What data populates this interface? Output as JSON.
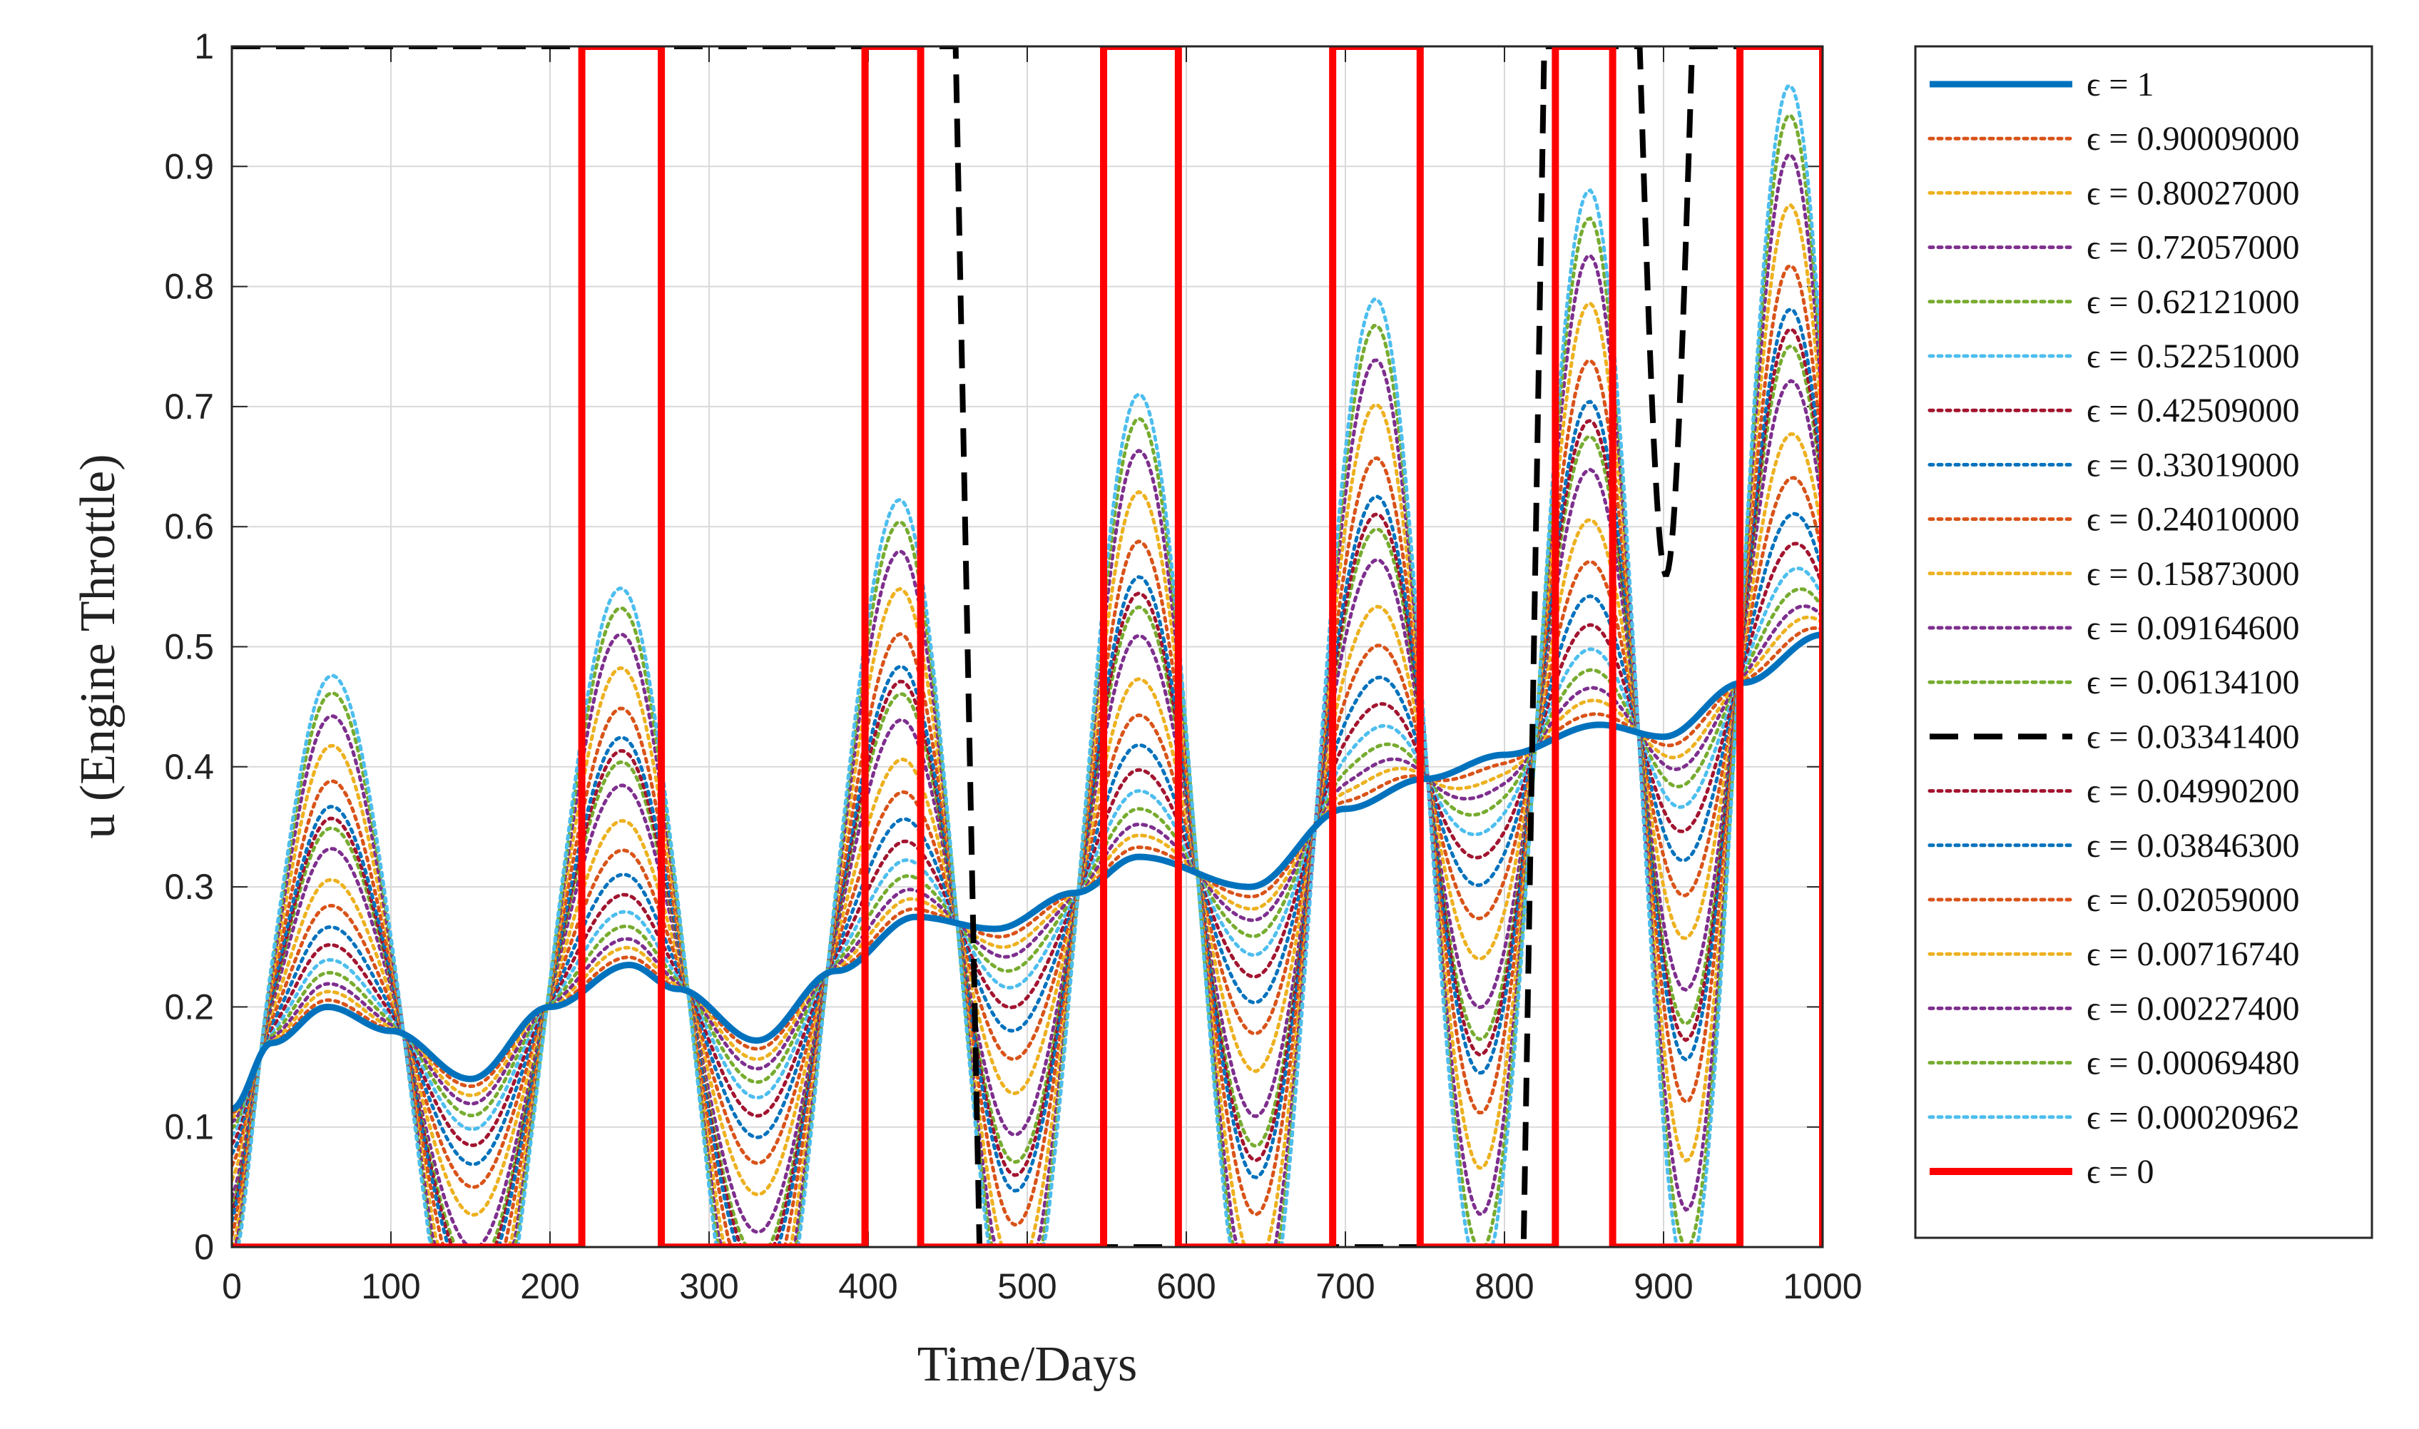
{
  "chart_data": {
    "type": "line",
    "title": "",
    "xlabel": "Time/Days",
    "ylabel": "u (Engine Throttle)",
    "xlim": [
      0,
      1000
    ],
    "ylim": [
      0,
      1
    ],
    "grid": true,
    "legend_position": "outside-right",
    "x_ticks": [
      "0",
      "100",
      "200",
      "300",
      "400",
      "500",
      "600",
      "700",
      "800",
      "900",
      "1000"
    ],
    "y_ticks": [
      "0",
      "0.1",
      "0.2",
      "0.3",
      "0.4",
      "0.5",
      "0.6",
      "0.7",
      "0.8",
      "0.9",
      "1"
    ],
    "series": [
      {
        "name": "ϵ = 1",
        "value": 1,
        "color": "#0072BD",
        "style": "solid"
      },
      {
        "name": "ϵ = 0.90009000",
        "value": 0.90009,
        "color": "#D95319",
        "style": "dotted"
      },
      {
        "name": "ϵ = 0.80027000",
        "value": 0.80027,
        "color": "#EDB120",
        "style": "dotted"
      },
      {
        "name": "ϵ = 0.72057000",
        "value": 0.72057,
        "color": "#7E2F8E",
        "style": "dotted"
      },
      {
        "name": "ϵ = 0.62121000",
        "value": 0.62121,
        "color": "#77AC30",
        "style": "dotted"
      },
      {
        "name": "ϵ = 0.52251000",
        "value": 0.52251,
        "color": "#4DBEEE",
        "style": "dotted"
      },
      {
        "name": "ϵ = 0.42509000",
        "value": 0.42509,
        "color": "#A2142F",
        "style": "dotted"
      },
      {
        "name": "ϵ = 0.33019000",
        "value": 0.33019,
        "color": "#0072BD",
        "style": "dotted"
      },
      {
        "name": "ϵ = 0.24010000",
        "value": 0.2401,
        "color": "#D95319",
        "style": "dotted"
      },
      {
        "name": "ϵ = 0.15873000",
        "value": 0.15873,
        "color": "#EDB120",
        "style": "dotted"
      },
      {
        "name": "ϵ = 0.09164600",
        "value": 0.091646,
        "color": "#7E2F8E",
        "style": "dotted"
      },
      {
        "name": "ϵ = 0.06134100",
        "value": 0.061341,
        "color": "#77AC30",
        "style": "dotted"
      },
      {
        "name": "ϵ = 0.03341400",
        "value": 0.033414,
        "color": "#000000",
        "style": "dashed"
      },
      {
        "name": "ϵ = 0.04990200",
        "value": 0.049902,
        "color": "#A2142F",
        "style": "dotted"
      },
      {
        "name": "ϵ = 0.03846300",
        "value": 0.038463,
        "color": "#0072BD",
        "style": "dotted"
      },
      {
        "name": "ϵ = 0.02059000",
        "value": 0.02059,
        "color": "#D95319",
        "style": "dotted"
      },
      {
        "name": "ϵ = 0.00716740",
        "value": 0.0071674,
        "color": "#EDB120",
        "style": "dotted"
      },
      {
        "name": "ϵ = 0.00227400",
        "value": 0.002274,
        "color": "#7E2F8E",
        "style": "dotted"
      },
      {
        "name": "ϵ = 0.00069480",
        "value": 0.0006948,
        "color": "#77AC30",
        "style": "dotted"
      },
      {
        "name": "ϵ = 0.00020962",
        "value": 0.00020962,
        "color": "#4DBEEE",
        "style": "dotted"
      },
      {
        "name": "ϵ = 0",
        "value": 0,
        "color": "#FF0000",
        "style": "solid-thick"
      }
    ],
    "baseline_u": {
      "t": [
        0,
        25,
        60,
        100,
        150,
        200,
        250,
        280,
        330,
        380,
        430,
        480,
        530,
        570,
        640,
        700,
        750,
        800,
        860,
        900,
        950,
        1000
      ],
      "u": [
        0.115,
        0.17,
        0.2,
        0.18,
        0.14,
        0.2,
        0.235,
        0.215,
        0.172,
        0.23,
        0.275,
        0.265,
        0.295,
        0.325,
        0.3,
        0.365,
        0.39,
        0.41,
        0.435,
        0.425,
        0.47,
        0.51
      ]
    },
    "switching_peaks": [
      63,
      243,
      418,
      570,
      718,
      853,
      978
    ],
    "bang_bang_on_intervals": [
      [
        220,
        270
      ],
      [
        398,
        433
      ],
      [
        548,
        595
      ],
      [
        692,
        747
      ],
      [
        832,
        868
      ],
      [
        948,
        1000
      ]
    ],
    "dashed_on_intervals": [
      [
        0,
        463
      ],
      [
        820,
        880
      ],
      [
        917,
        1000
      ]
    ],
    "dashed_dip_min": 0.56
  }
}
